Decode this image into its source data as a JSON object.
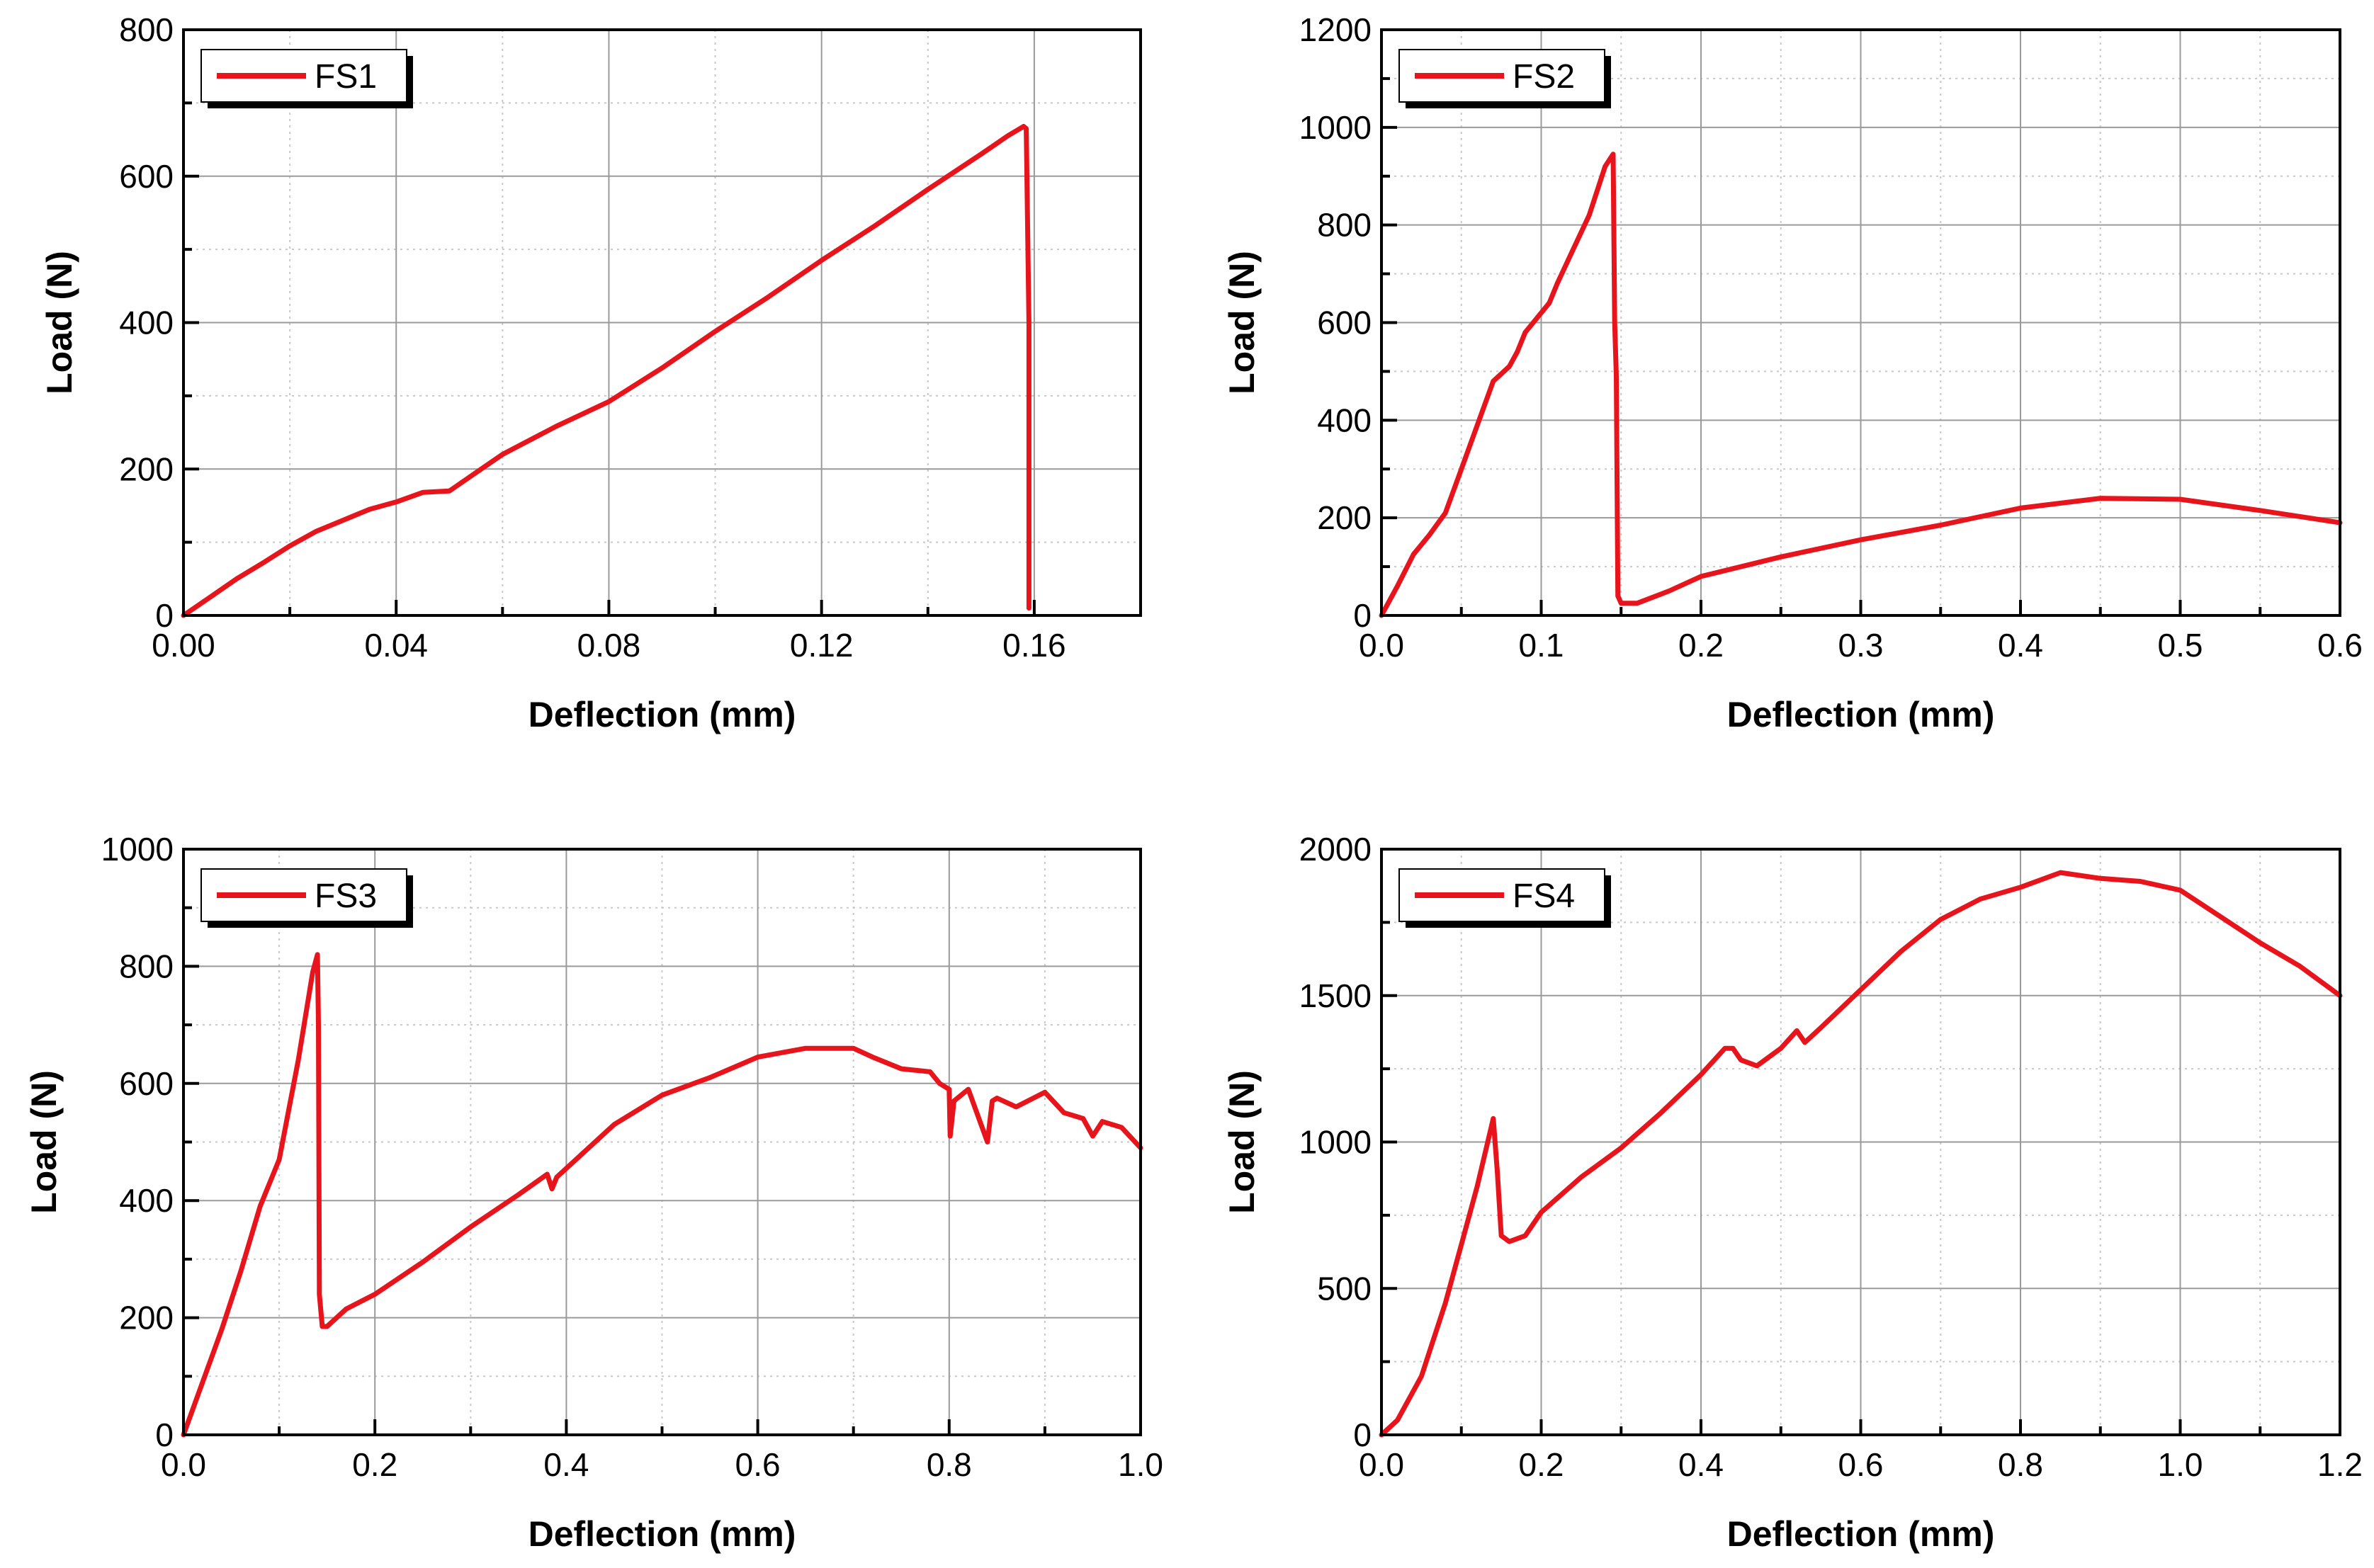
{
  "figure": {
    "panel_count": 4
  },
  "chart_data": [
    {
      "type": "line",
      "title": "",
      "xlabel": "Deflection (mm)",
      "ylabel": "Load (N)",
      "xlim": [
        0,
        0.18
      ],
      "ylim": [
        0,
        800
      ],
      "x_ticks": [
        0,
        0.04,
        0.08,
        0.12,
        0.16
      ],
      "x_tick_labels": [
        "0.00",
        "0.04",
        "0.08",
        "0.12",
        "0.16"
      ],
      "y_ticks": [
        0,
        200,
        400,
        600,
        800
      ],
      "y_tick_labels": [
        "0",
        "200",
        "400",
        "600",
        "800"
      ],
      "x_minor_step": 0.02,
      "y_minor_step": 100,
      "grid": true,
      "legend": {
        "position": "top-left",
        "entries": [
          "FS1"
        ]
      },
      "series": [
        {
          "name": "FS1",
          "color": "#e8141c",
          "x": [
            0,
            0.005,
            0.01,
            0.015,
            0.02,
            0.025,
            0.03,
            0.035,
            0.04,
            0.045,
            0.05,
            0.055,
            0.06,
            0.07,
            0.08,
            0.09,
            0.1,
            0.11,
            0.12,
            0.13,
            0.14,
            0.15,
            0.155,
            0.158,
            0.1585,
            0.159,
            0.159
          ],
          "y": [
            0,
            25,
            50,
            72,
            95,
            115,
            130,
            145,
            155,
            168,
            170,
            195,
            220,
            258,
            292,
            338,
            388,
            435,
            485,
            532,
            582,
            630,
            655,
            668,
            665,
            400,
            10
          ]
        }
      ]
    },
    {
      "type": "line",
      "title": "",
      "xlabel": "Deflection (mm)",
      "ylabel": "Load (N)",
      "xlim": [
        0,
        0.6
      ],
      "ylim": [
        0,
        1200
      ],
      "x_ticks": [
        0,
        0.1,
        0.2,
        0.3,
        0.4,
        0.5,
        0.6
      ],
      "x_tick_labels": [
        "0.0",
        "0.1",
        "0.2",
        "0.3",
        "0.4",
        "0.5",
        "0.6"
      ],
      "y_ticks": [
        0,
        200,
        400,
        600,
        800,
        1000,
        1200
      ],
      "y_tick_labels": [
        "0",
        "200",
        "400",
        "600",
        "800",
        "1000",
        "1200"
      ],
      "x_minor_step": 0.05,
      "y_minor_step": 100,
      "grid": true,
      "legend": {
        "position": "top-left",
        "entries": [
          "FS2"
        ]
      },
      "series": [
        {
          "name": "FS2",
          "color": "#e8141c",
          "x": [
            0,
            0.01,
            0.02,
            0.03,
            0.04,
            0.05,
            0.06,
            0.07,
            0.08,
            0.085,
            0.09,
            0.1,
            0.105,
            0.11,
            0.12,
            0.13,
            0.14,
            0.145,
            0.146,
            0.147,
            0.148,
            0.15,
            0.16,
            0.18,
            0.2,
            0.25,
            0.3,
            0.35,
            0.4,
            0.45,
            0.5,
            0.55,
            0.6
          ],
          "y": [
            0,
            60,
            125,
            165,
            210,
            300,
            390,
            480,
            510,
            540,
            580,
            620,
            640,
            680,
            750,
            820,
            920,
            945,
            600,
            490,
            40,
            25,
            25,
            50,
            80,
            120,
            155,
            185,
            220,
            240,
            238,
            215,
            190
          ]
        }
      ]
    },
    {
      "type": "line",
      "title": "",
      "xlabel": "Deflection (mm)",
      "ylabel": "Load (N)",
      "xlim": [
        0,
        1.0
      ],
      "ylim": [
        0,
        1000
      ],
      "x_ticks": [
        0,
        0.2,
        0.4,
        0.6,
        0.8,
        1.0
      ],
      "x_tick_labels": [
        "0.0",
        "0.2",
        "0.4",
        "0.6",
        "0.8",
        "1.0"
      ],
      "y_ticks": [
        0,
        200,
        400,
        600,
        800,
        1000
      ],
      "y_tick_labels": [
        "0",
        "200",
        "400",
        "600",
        "800",
        "1000"
      ],
      "x_minor_step": 0.1,
      "y_minor_step": 100,
      "grid": true,
      "legend": {
        "position": "top-left",
        "entries": [
          "FS3"
        ]
      },
      "series": [
        {
          "name": "FS3",
          "color": "#e8141c",
          "x": [
            0,
            0.02,
            0.04,
            0.06,
            0.08,
            0.1,
            0.12,
            0.135,
            0.14,
            0.141,
            0.142,
            0.145,
            0.15,
            0.17,
            0.2,
            0.25,
            0.3,
            0.35,
            0.38,
            0.385,
            0.39,
            0.45,
            0.5,
            0.55,
            0.6,
            0.65,
            0.7,
            0.72,
            0.75,
            0.78,
            0.79,
            0.8,
            0.801,
            0.805,
            0.82,
            0.84,
            0.845,
            0.85,
            0.87,
            0.9,
            0.92,
            0.94,
            0.95,
            0.96,
            0.98,
            1.0
          ],
          "y": [
            0,
            90,
            180,
            280,
            390,
            470,
            640,
            790,
            820,
            700,
            240,
            185,
            185,
            215,
            240,
            295,
            355,
            410,
            445,
            420,
            440,
            530,
            580,
            610,
            645,
            660,
            660,
            645,
            625,
            620,
            600,
            590,
            510,
            570,
            590,
            500,
            570,
            575,
            560,
            585,
            550,
            540,
            510,
            535,
            525,
            490
          ]
        }
      ]
    },
    {
      "type": "line",
      "title": "",
      "xlabel": "Deflection (mm)",
      "ylabel": "Load (N)",
      "xlim": [
        0,
        1.2
      ],
      "ylim": [
        0,
        2000
      ],
      "x_ticks": [
        0,
        0.2,
        0.4,
        0.6,
        0.8,
        1.0,
        1.2
      ],
      "x_tick_labels": [
        "0.0",
        "0.2",
        "0.4",
        "0.6",
        "0.8",
        "1.0",
        "1.2"
      ],
      "y_ticks": [
        0,
        500,
        1000,
        1500,
        2000
      ],
      "y_tick_labels": [
        "0",
        "500",
        "1000",
        "1500",
        "2000"
      ],
      "x_minor_step": 0.1,
      "y_minor_step": 250,
      "grid": true,
      "legend": {
        "position": "top-left",
        "entries": [
          "FS4"
        ]
      },
      "series": [
        {
          "name": "FS4",
          "color": "#e8141c",
          "x": [
            0,
            0.02,
            0.05,
            0.08,
            0.1,
            0.12,
            0.14,
            0.145,
            0.15,
            0.16,
            0.18,
            0.2,
            0.25,
            0.3,
            0.35,
            0.4,
            0.43,
            0.44,
            0.45,
            0.47,
            0.5,
            0.52,
            0.53,
            0.55,
            0.6,
            0.65,
            0.7,
            0.75,
            0.8,
            0.85,
            0.9,
            0.95,
            1.0,
            1.05,
            1.1,
            1.15,
            1.2
          ],
          "y": [
            0,
            50,
            200,
            450,
            650,
            850,
            1080,
            900,
            680,
            660,
            680,
            760,
            880,
            980,
            1100,
            1230,
            1320,
            1320,
            1280,
            1260,
            1320,
            1380,
            1340,
            1390,
            1520,
            1650,
            1760,
            1830,
            1870,
            1920,
            1900,
            1890,
            1860,
            1770,
            1680,
            1600,
            1500
          ]
        }
      ]
    }
  ]
}
